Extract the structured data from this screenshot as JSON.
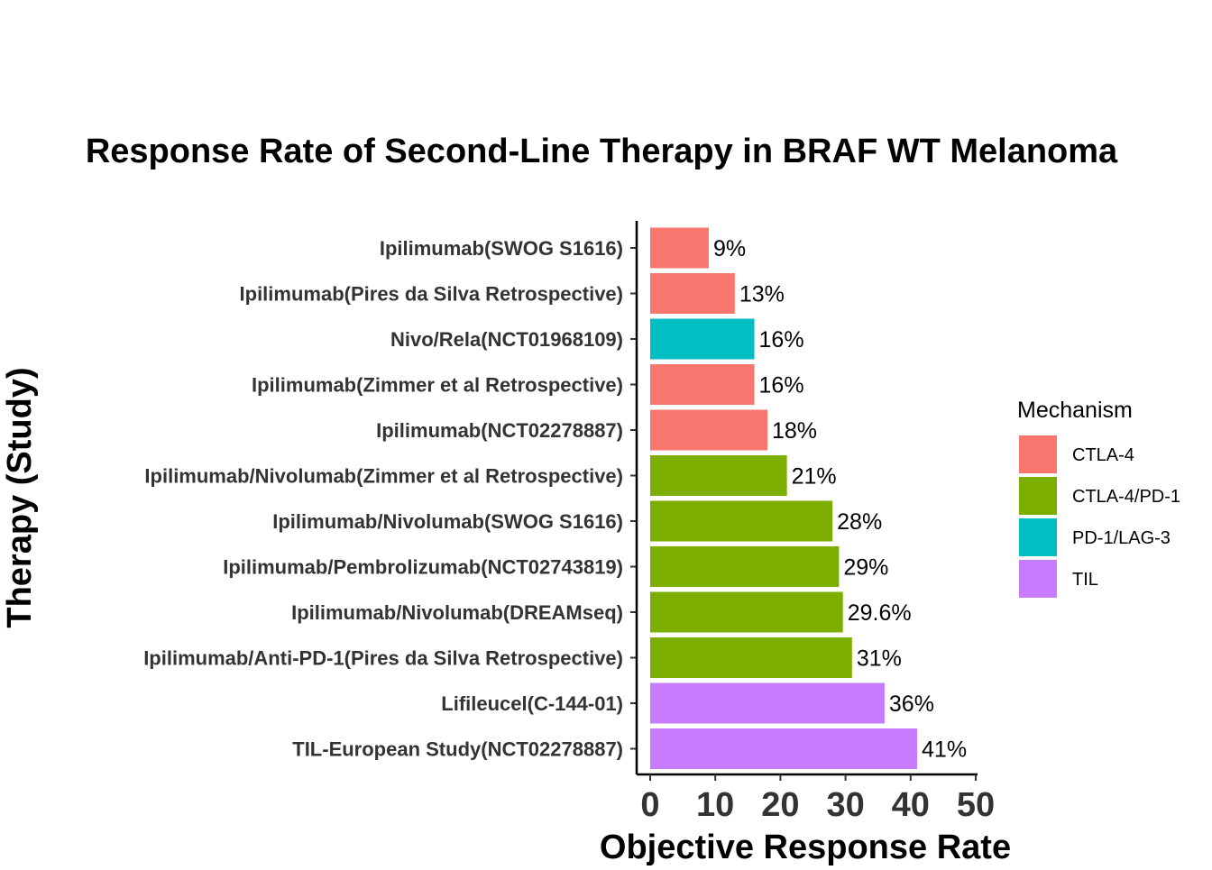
{
  "chart_data": {
    "type": "bar",
    "orientation": "horizontal",
    "title": "Response Rate of Second-Line Therapy in BRAF WT Melanoma",
    "xlabel": "Objective Response Rate",
    "ylabel": "Therapy (Study)",
    "xlim": [
      0,
      50
    ],
    "x_ticks": [
      "0",
      "10",
      "20",
      "30",
      "40",
      "50"
    ],
    "x_tick_values": [
      0,
      10,
      20,
      30,
      40,
      50
    ],
    "grid": false,
    "legend": {
      "title": "Mechanism",
      "placement": "right",
      "items": [
        {
          "label": "CTLA-4",
          "color": "#F8766D"
        },
        {
          "label": "CTLA-4/PD-1",
          "color": "#7CAE00"
        },
        {
          "label": "PD-1/LAG-3",
          "color": "#00BFC4"
        },
        {
          "label": "TIL",
          "color": "#C77CFF"
        }
      ]
    },
    "bars": [
      {
        "category": "Ipilimumab(SWOG S1616)",
        "value": 9,
        "label": "9%",
        "mechanism": "CTLA-4"
      },
      {
        "category": "Ipilimumab(Pires da Silva Retrospective)",
        "value": 13,
        "label": "13%",
        "mechanism": "CTLA-4"
      },
      {
        "category": "Nivo/Rela(NCT01968109)",
        "value": 16,
        "label": "16%",
        "mechanism": "PD-1/LAG-3"
      },
      {
        "category": "Ipilimumab(Zimmer et al Retrospective)",
        "value": 16,
        "label": "16%",
        "mechanism": "CTLA-4"
      },
      {
        "category": "Ipilimumab(NCT02278887)",
        "value": 18,
        "label": "18%",
        "mechanism": "CTLA-4"
      },
      {
        "category": "Ipilimumab/Nivolumab(Zimmer et al Retrospective)",
        "value": 21,
        "label": "21%",
        "mechanism": "CTLA-4/PD-1"
      },
      {
        "category": "Ipilimumab/Nivolumab(SWOG S1616)",
        "value": 28,
        "label": "28%",
        "mechanism": "CTLA-4/PD-1"
      },
      {
        "category": "Ipilimumab/Pembrolizumab(NCT02743819)",
        "value": 29,
        "label": "29%",
        "mechanism": "CTLA-4/PD-1"
      },
      {
        "category": "Ipilimumab/Nivolumab(DREAMseq)",
        "value": 29.6,
        "label": "29.6%",
        "mechanism": "CTLA-4/PD-1"
      },
      {
        "category": "Ipilimumab/Anti-PD-1(Pires da Silva Retrospective)",
        "value": 31,
        "label": "31%",
        "mechanism": "CTLA-4/PD-1"
      },
      {
        "category": "Lifileucel(C-144-01)",
        "value": 36,
        "label": "36%",
        "mechanism": "TIL"
      },
      {
        "category": "TIL-European Study(NCT02278887)",
        "value": 41,
        "label": "41%",
        "mechanism": "TIL"
      }
    ]
  }
}
